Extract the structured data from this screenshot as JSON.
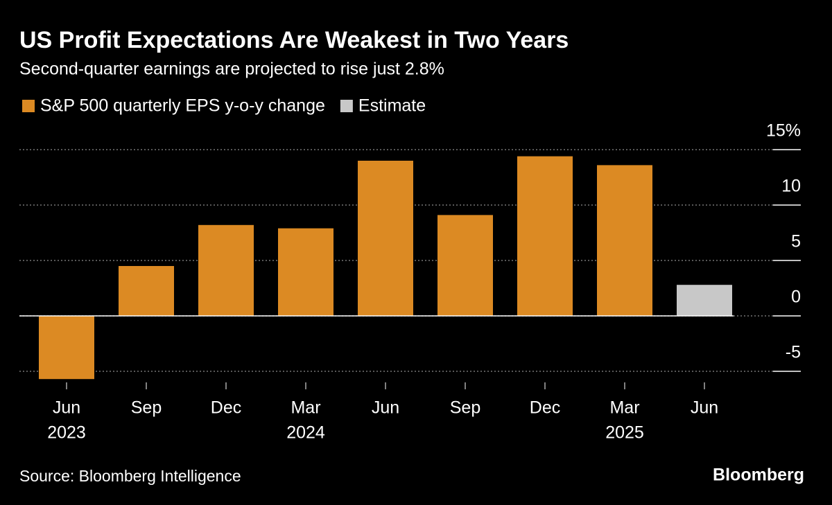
{
  "chart_data": {
    "type": "bar",
    "title": "US Profit Expectations Are Weakest in Two Years",
    "subtitle": "Second-quarter earnings are projected to rise just 2.8%",
    "categories": [
      [
        "Jun",
        "2023"
      ],
      [
        "Sep"
      ],
      [
        "Dec"
      ],
      [
        "Mar",
        "2024"
      ],
      [
        "Jun"
      ],
      [
        "Sep"
      ],
      [
        "Dec"
      ],
      [
        "Mar",
        "2025"
      ],
      [
        "Jun"
      ]
    ],
    "series": [
      {
        "name": "S&P 500 quarterly EPS y-o-y change",
        "color": "#dc8a23",
        "values": [
          -5.7,
          4.5,
          8.2,
          7.9,
          14.0,
          9.1,
          14.4,
          13.6,
          null
        ]
      },
      {
        "name": "Estimate",
        "color": "#c8c8c8",
        "values": [
          null,
          null,
          null,
          null,
          null,
          null,
          null,
          null,
          2.8
        ]
      }
    ],
    "ylim": [
      -6,
      15
    ],
    "yticks": [
      -5,
      0,
      5,
      10,
      {
        "value": 15,
        "label": "15%"
      }
    ],
    "grid": true,
    "source": "Source: Bloomberg Intelligence",
    "brand": "Bloomberg"
  }
}
